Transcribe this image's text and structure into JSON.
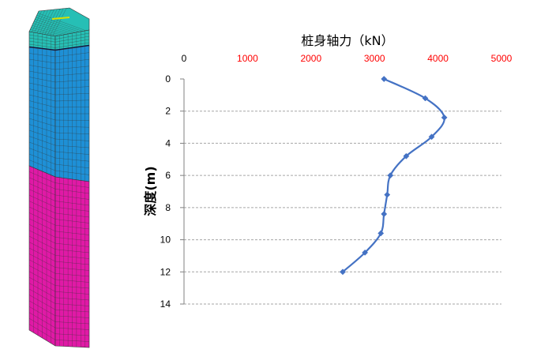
{
  "colors": {
    "series": "#4472C4",
    "x_tick_red": "#FF0000",
    "x_tick_black": "#000000",
    "grid": "#A6A6A6",
    "pile_top": "#26BFB5",
    "pile_middle": "#1E90D6",
    "pile_bottom": "#E019A6",
    "mesh_line": "#333333"
  },
  "illustration": {
    "icon": "pile-mesh-icon"
  },
  "chart_data": {
    "type": "line",
    "title": "桩身轴力（kN）",
    "xlabel": "",
    "ylabel": "深度(m)",
    "x_axis_position": "top",
    "xlim": [
      0,
      5000
    ],
    "ylim": [
      0,
      14
    ],
    "y_inverted": true,
    "x_ticks": [
      "0",
      "1000",
      "2000",
      "3000",
      "4000",
      "5000"
    ],
    "y_ticks": [
      "0",
      "2",
      "4",
      "6",
      "8",
      "10",
      "12",
      "14"
    ],
    "grid": "horizontal dashed",
    "legend": "none",
    "series": [
      {
        "x": [
          3150,
          3800,
          4100,
          3900,
          3500,
          3250,
          3200,
          3150,
          3100,
          2850,
          2500
        ],
        "y": [
          0,
          1.2,
          2.4,
          3.6,
          4.8,
          6.0,
          7.2,
          8.4,
          9.6,
          10.8,
          12.0
        ]
      }
    ]
  }
}
